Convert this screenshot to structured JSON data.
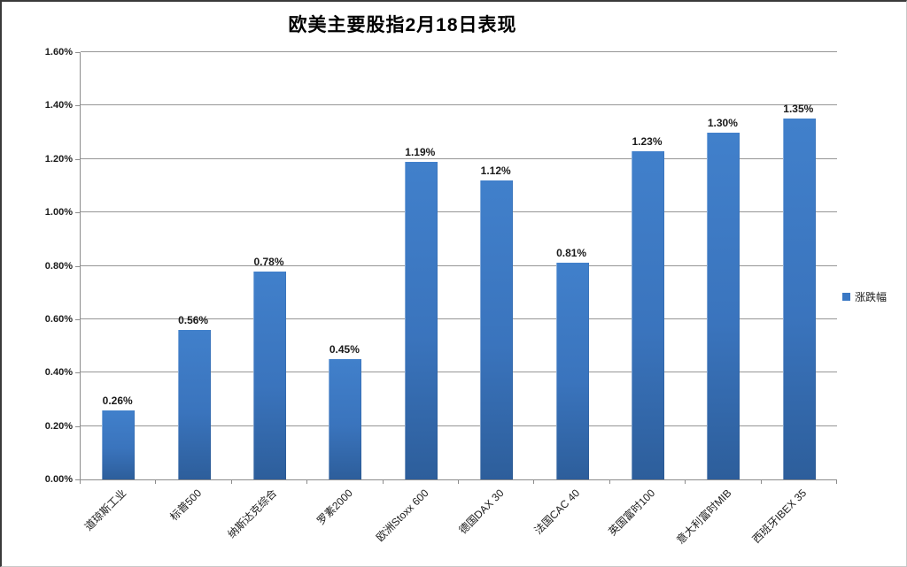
{
  "chart_data": {
    "type": "bar",
    "title": "欧美主要股指2月18日表现",
    "categories": [
      "道琼斯工业",
      "标普500",
      "纳斯达克综合",
      "罗素2000",
      "欧洲Stoxx 600",
      "德国DAX 30",
      "法国CAC 40",
      "英国富时100",
      "意大利富时MIB",
      "西班牙IBEX 35"
    ],
    "series": [
      {
        "name": "涨跌幅",
        "values": [
          0.26,
          0.56,
          0.78,
          0.45,
          1.19,
          1.12,
          0.81,
          1.23,
          1.3,
          1.35
        ],
        "labels": [
          "0.26%",
          "0.56%",
          "0.78%",
          "0.45%",
          "1.19%",
          "1.12%",
          "0.81%",
          "1.23%",
          "1.30%",
          "1.35%"
        ]
      }
    ],
    "xlabel": "",
    "ylabel": "",
    "ylim": [
      0,
      1.6
    ],
    "y_ticks": [
      "0.00%",
      "0.20%",
      "0.40%",
      "0.60%",
      "0.80%",
      "1.00%",
      "1.20%",
      "1.40%",
      "1.60%"
    ],
    "grid": true,
    "legend_position": "right",
    "colors": {
      "bar_gradient_top": "#4180cb",
      "bar_gradient_mid": "#3a74bd",
      "bar_gradient_bottom": "#2d5e9b",
      "legend_swatch": "#3a78c4",
      "gridline": "#969696",
      "axis": "#8c8c8c"
    }
  }
}
